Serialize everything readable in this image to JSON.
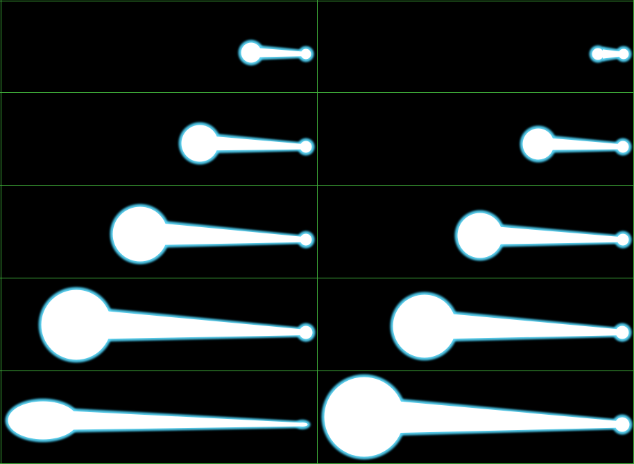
{
  "sprite_sheet": {
    "background_color": "#000000",
    "grid_color": "#3fae3a",
    "beam_core_color": "#ffffff",
    "beam_glow_color": "#5fd6f5",
    "beam_edge_color": "#2ec3ee",
    "columns": 2,
    "rows": 5,
    "frames": [
      {
        "row": 0,
        "col": 0,
        "variant": "energy-beam"
      },
      {
        "row": 0,
        "col": 1,
        "variant": "energy-beam"
      },
      {
        "row": 1,
        "col": 0,
        "variant": "energy-beam"
      },
      {
        "row": 1,
        "col": 1,
        "variant": "energy-beam"
      },
      {
        "row": 2,
        "col": 0,
        "variant": "energy-beam"
      },
      {
        "row": 2,
        "col": 1,
        "variant": "energy-beam"
      },
      {
        "row": 3,
        "col": 0,
        "variant": "energy-beam"
      },
      {
        "row": 3,
        "col": 1,
        "variant": "energy-beam"
      },
      {
        "row": 4,
        "col": 0,
        "variant": "energy-beam-elongated"
      },
      {
        "row": 4,
        "col": 1,
        "variant": "energy-beam"
      }
    ]
  }
}
